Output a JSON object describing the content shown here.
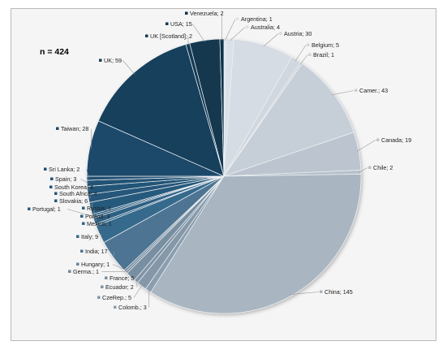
{
  "chart_data": {
    "type": "pie",
    "title": "n = 424",
    "slices": [
      {
        "label": "Argentina; 1",
        "value": 1,
        "color": "#dde3ea"
      },
      {
        "label": "Australia; 4",
        "value": 4,
        "color": "#dbe1e8"
      },
      {
        "label": "Austria; 30",
        "value": 30,
        "color": "#d6dce3"
      },
      {
        "label": "Belgium; 5",
        "value": 5,
        "color": "#d0d7de"
      },
      {
        "label": "Brazil; 1",
        "value": 1,
        "color": "#ced5dc"
      },
      {
        "label": "Camer.; 43",
        "value": 43,
        "color": "#c6ced7"
      },
      {
        "label": "Canada; 19",
        "value": 19,
        "color": "#bcc5cf"
      },
      {
        "label": "Chile; 2",
        "value": 2,
        "color": "#b7c1cb"
      },
      {
        "label": "China; 145",
        "value": 145,
        "color": "#a9b5c1"
      },
      {
        "label": "Colomb.; 3",
        "value": 3,
        "color": "#8b9eae"
      },
      {
        "label": "CzeRep.; 5",
        "value": 5,
        "color": "#8598a9"
      },
      {
        "label": "Ecuador; 2",
        "value": 2,
        "color": "#7f93a5"
      },
      {
        "label": "France; 5",
        "value": 5,
        "color": "#788ea1"
      },
      {
        "label": "Germa.; 1",
        "value": 1,
        "color": "#70889c"
      },
      {
        "label": "Hungary; 1",
        "value": 1,
        "color": "#6b8499"
      },
      {
        "label": "India; 17",
        "value": 17,
        "color": "#4d7593"
      },
      {
        "label": "Italy; 9",
        "value": 9,
        "color": "#356a8c"
      },
      {
        "label": "Mexico; 1",
        "value": 1,
        "color": "#2f6386"
      },
      {
        "label": "Poland; 3",
        "value": 3,
        "color": "#2d6184"
      },
      {
        "label": "Portugal; 1",
        "value": 1,
        "color": "#2b5e81"
      },
      {
        "label": "Russia; 1",
        "value": 1,
        "color": "#2a5c7f"
      },
      {
        "label": "Slovakia; 6",
        "value": 6,
        "color": "#285a7c"
      },
      {
        "label": "South Africa; 4",
        "value": 4,
        "color": "#26577a"
      },
      {
        "label": "South Korea; 4",
        "value": 4,
        "color": "#245477"
      },
      {
        "label": "Spain; 3",
        "value": 3,
        "color": "#225274"
      },
      {
        "label": "Sri Lanka; 2",
        "value": 2,
        "color": "#215072"
      },
      {
        "label": "Taiwan; 28",
        "value": 28,
        "color": "#1c4a6a"
      },
      {
        "label": "UK; 59",
        "value": 59,
        "color": "#163f5c"
      },
      {
        "label": "UK [Scotland]; 2",
        "value": 2,
        "color": "#133a55"
      },
      {
        "label": "USA; 15",
        "value": 15,
        "color": "#12384f"
      },
      {
        "label": "Venezuela; 2",
        "value": 2,
        "color": "#0f3048"
      }
    ]
  }
}
